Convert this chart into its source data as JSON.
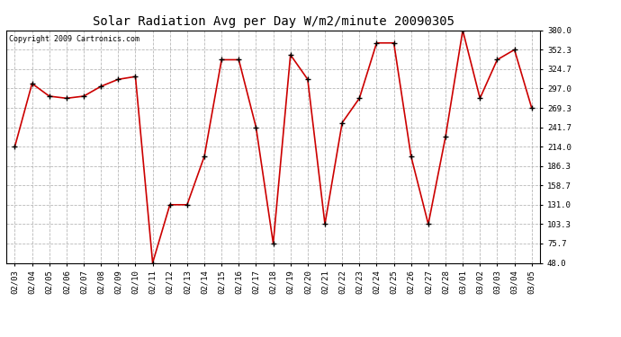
{
  "title": "Solar Radiation Avg per Day W/m2/minute 20090305",
  "copyright": "Copyright 2009 Cartronics.com",
  "dates": [
    "02/03",
    "02/04",
    "02/05",
    "02/06",
    "02/07",
    "02/08",
    "02/09",
    "02/10",
    "02/11",
    "02/12",
    "02/13",
    "02/14",
    "02/15",
    "02/16",
    "02/17",
    "02/18",
    "02/19",
    "02/20",
    "02/21",
    "02/22",
    "02/23",
    "02/24",
    "02/25",
    "02/26",
    "02/27",
    "02/28",
    "03/01",
    "03/02",
    "03/03",
    "03/04",
    "03/05"
  ],
  "values": [
    214.0,
    304.0,
    286.0,
    283.0,
    286.0,
    300.0,
    310.0,
    314.0,
    48.0,
    131.0,
    131.0,
    200.0,
    338.0,
    338.0,
    241.7,
    75.7,
    345.0,
    310.0,
    103.3,
    248.0,
    283.0,
    362.0,
    362.0,
    200.0,
    103.3,
    228.0,
    380.0,
    283.0,
    338.0,
    352.3,
    269.3
  ],
  "ylim": [
    48.0,
    380.0
  ],
  "yticks": [
    48.0,
    75.7,
    103.3,
    131.0,
    158.7,
    186.3,
    214.0,
    241.7,
    269.3,
    297.0,
    324.7,
    352.3,
    380.0
  ],
  "line_color": "#cc0000",
  "marker_color": "#000000",
  "bg_color": "#ffffff",
  "grid_color": "#b0b0b0",
  "title_fontsize": 10,
  "copyright_fontsize": 6,
  "tick_fontsize": 6.5
}
